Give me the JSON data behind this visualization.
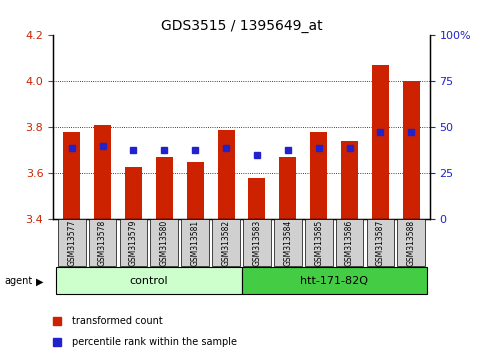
{
  "title": "GDS3515 / 1395649_at",
  "samples": [
    "GSM313577",
    "GSM313578",
    "GSM313579",
    "GSM313580",
    "GSM313581",
    "GSM313582",
    "GSM313583",
    "GSM313584",
    "GSM313585",
    "GSM313586",
    "GSM313587",
    "GSM313588"
  ],
  "red_values": [
    3.78,
    3.81,
    3.63,
    3.67,
    3.65,
    3.79,
    3.58,
    3.67,
    3.78,
    3.74,
    4.07,
    4.0
  ],
  "blue_values": [
    3.71,
    3.72,
    3.7,
    3.7,
    3.7,
    3.71,
    3.68,
    3.7,
    3.71,
    3.71,
    3.78,
    3.78
  ],
  "ymin": 3.4,
  "ymax": 4.2,
  "yticks_left": [
    3.4,
    3.6,
    3.8,
    4.0,
    4.2
  ],
  "right_ticks_vals": [
    3.4,
    3.6,
    3.8,
    4.0,
    4.2
  ],
  "right_ticks_labels": [
    "0",
    "25",
    "50",
    "75",
    "100%"
  ],
  "control_label": "control",
  "treatment_label": "htt-171-82Q",
  "agent_label": "agent",
  "legend_red": "transformed count",
  "legend_blue": "percentile rank within the sample",
  "bar_color": "#cc2200",
  "dot_color": "#2222cc",
  "bg_plot": "#ffffff",
  "bg_control": "#ccffcc",
  "bg_treatment": "#44cc44",
  "bg_xtick": "#d0d0d0",
  "bar_width": 0.55,
  "ctrl_n": 6,
  "treat_n": 6
}
